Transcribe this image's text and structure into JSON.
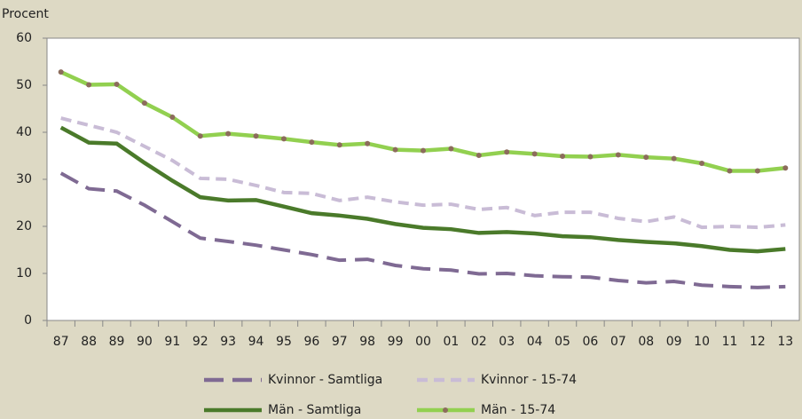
{
  "chart_data": {
    "type": "line",
    "y_label": "Procent",
    "categories": [
      "87",
      "88",
      "89",
      "90",
      "91",
      "92",
      "93",
      "94",
      "95",
      "96",
      "97",
      "98",
      "99",
      "00",
      "01",
      "02",
      "03",
      "04",
      "05",
      "06",
      "07",
      "08",
      "09",
      "10",
      "11",
      "12",
      "13"
    ],
    "series": [
      {
        "name": "Kvinnor - Samtliga",
        "color": "#7f6a93",
        "dashed": true,
        "markers": false,
        "values": [
          31.3,
          28,
          27.5,
          24.5,
          21,
          17.5,
          16.8,
          16,
          15,
          14,
          12.8,
          13,
          11.7,
          11,
          10.7,
          9.9,
          10,
          9.5,
          9.3,
          9.2,
          8.5,
          8,
          8.3,
          7.5,
          7.2,
          7,
          7.2
        ]
      },
      {
        "name": "Kvinnor - 15-74",
        "color": "#c9bcd6",
        "dashed": true,
        "markers": false,
        "values": [
          43,
          41.5,
          40,
          37,
          34,
          30.2,
          30,
          28.7,
          27.2,
          27,
          25.5,
          26.2,
          25.2,
          24.5,
          24.7,
          23.6,
          24,
          22.3,
          23,
          23,
          21.7,
          21,
          22,
          19.8,
          20,
          19.8,
          20.3
        ]
      },
      {
        "name": "Män - Samtliga",
        "color": "#4a7a2a",
        "dashed": false,
        "markers": false,
        "values": [
          41,
          37.8,
          37.6,
          33.5,
          29.7,
          26.2,
          25.5,
          25.6,
          24.2,
          22.8,
          22.3,
          21.6,
          20.5,
          19.7,
          19.4,
          18.6,
          18.8,
          18.5,
          17.9,
          17.7,
          17.1,
          16.7,
          16.4,
          15.8,
          15,
          14.7,
          15.2
        ]
      },
      {
        "name": "Män - 15-74",
        "color": "#92d050",
        "dashed": false,
        "markers": true,
        "marker_color": "#8c6c5c",
        "values": [
          52.8,
          50.1,
          50.2,
          46.2,
          43.2,
          39.2,
          39.7,
          39.2,
          38.6,
          37.9,
          37.3,
          37.6,
          36.3,
          36.1,
          36.5,
          35.1,
          35.8,
          35.4,
          34.9,
          34.8,
          35.2,
          34.7,
          34.4,
          33.4,
          31.8,
          31.8,
          32.4
        ]
      }
    ],
    "ylim": [
      0,
      60
    ],
    "yticks": [
      0,
      10,
      20,
      30,
      40,
      50,
      60
    ],
    "grid": false
  }
}
